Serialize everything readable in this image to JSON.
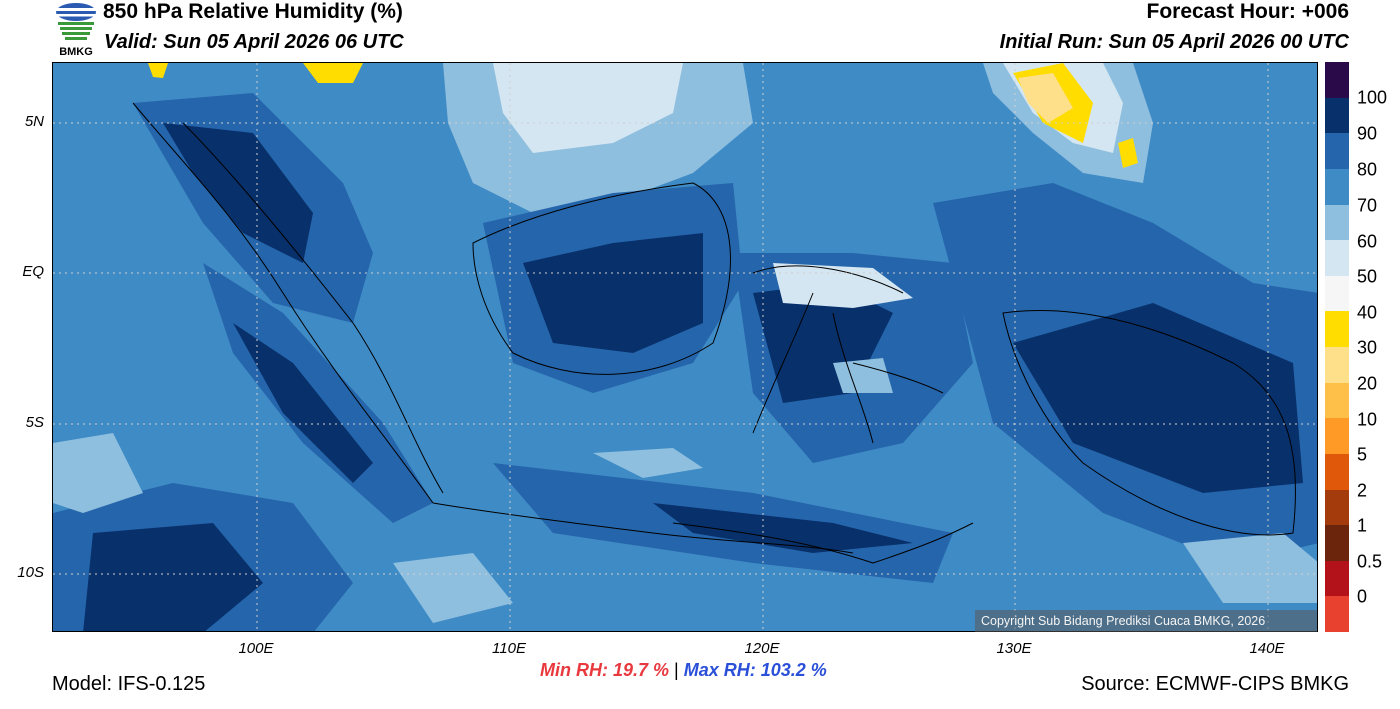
{
  "header": {
    "title": "850 hPa Relative Humidity (%)",
    "valid": "Valid: Sun 05 April 2026 06 UTC",
    "forecast_hour": "Forecast Hour: +006",
    "initial_run": "Initial Run: Sun 05 April 2026 00 UTC"
  },
  "logo": {
    "icon": "bmkg-logo-icon",
    "text": "BMKG"
  },
  "map": {
    "lat_labels": [
      "5N",
      "EQ",
      "5S",
      "10S"
    ],
    "lon_labels": [
      "100E",
      "110E",
      "120E",
      "130E",
      "140E"
    ],
    "copyright": "Copyright Sub Bidang Prediksi Cuaca BMKG, 2026"
  },
  "colorbar": {
    "labels": [
      "100",
      "90",
      "80",
      "70",
      "60",
      "50",
      "40",
      "30",
      "20",
      "10",
      "5",
      "2",
      "1",
      "0.5",
      "0"
    ],
    "colors": [
      "#2b0a4a",
      "#08306b",
      "#2565ab",
      "#3f8bc5",
      "#8fbfdf",
      "#d4e6f2",
      "#f6f6f6",
      "#ffdd00",
      "#ffe08a",
      "#ffc04a",
      "#ff9a26",
      "#e0590a",
      "#a33b0d",
      "#6b250c",
      "#b3121b",
      "#e9412f"
    ]
  },
  "stats": {
    "min": "Min RH:  19.7 %",
    "separator": "|",
    "max": "Max RH: 103.2 %"
  },
  "footer": {
    "model": "Model: IFS-0.125",
    "source": "Source: ECMWF-CIPS BMKG"
  }
}
